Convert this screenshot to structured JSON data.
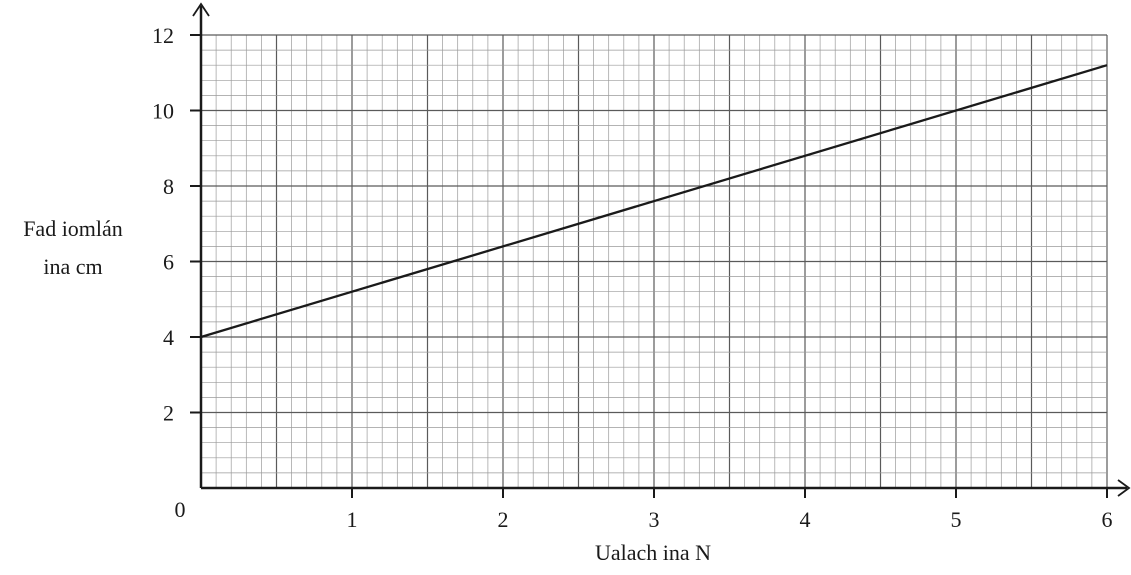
{
  "chart_data": {
    "type": "line",
    "title": "",
    "xlabel": "Ualach ina N",
    "ylabel_lines": [
      "Fad iomlán",
      "ina cm"
    ],
    "xlim": [
      0,
      6
    ],
    "ylim": [
      0,
      12
    ],
    "x_ticks": [
      1,
      2,
      3,
      4,
      5,
      6
    ],
    "y_ticks": [
      2,
      4,
      6,
      8,
      10,
      12
    ],
    "origin_label": "0",
    "grid": true,
    "grid_minor_x": 0.1,
    "grid_minor_y": 0.4,
    "grid_major_x": 0.5,
    "grid_major_y": 2,
    "series": [
      {
        "x": [
          0,
          6
        ],
        "y": [
          4,
          11.2
        ]
      }
    ],
    "colors": {
      "line": "#1a1a1a",
      "axis": "#1a1a1a",
      "grid_minor": "#9a9a9a",
      "grid_major": "#5a5a5a"
    }
  }
}
